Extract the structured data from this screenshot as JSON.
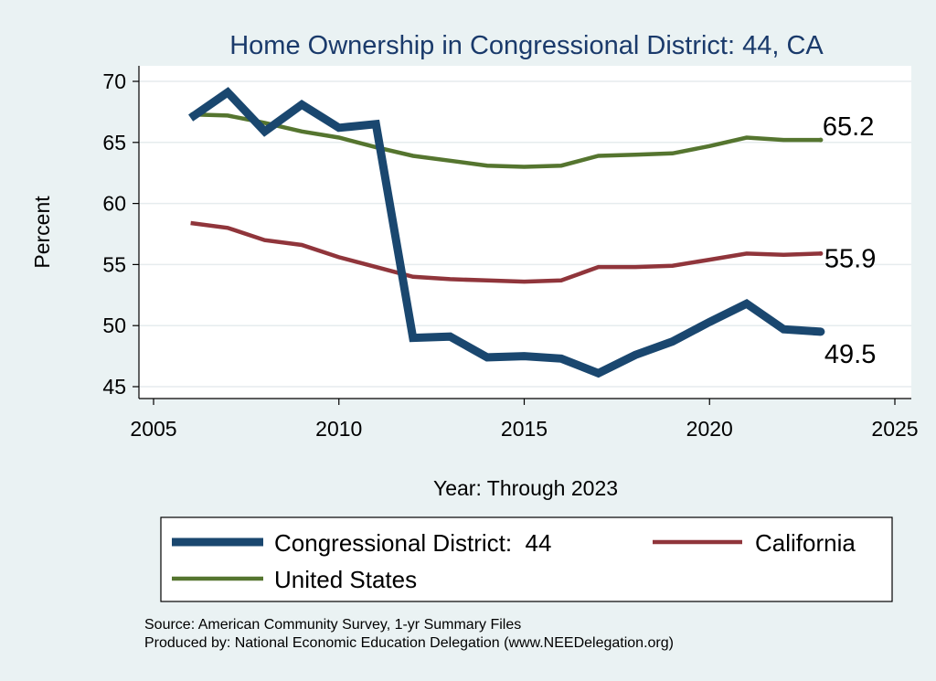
{
  "chart_data": {
    "type": "line",
    "title": "Home Ownership in Congressional District:  44, CA",
    "xlabel": "Year: Through 2023",
    "ylabel": "Percent",
    "xlim": [
      2005,
      2025
    ],
    "ylim": [
      44.5,
      71
    ],
    "x_ticks": [
      2005,
      2010,
      2015,
      2020,
      2025
    ],
    "y_ticks": [
      45,
      50,
      55,
      60,
      65,
      70
    ],
    "grid": true,
    "legend_position": "bottom",
    "x": [
      2006,
      2007,
      2008,
      2009,
      2010,
      2011,
      2012,
      2013,
      2014,
      2015,
      2016,
      2017,
      2018,
      2019,
      2020,
      2021,
      2022,
      2023
    ],
    "series": [
      {
        "name": "Congressional District:  44",
        "color": "#1a476f",
        "values": [
          67.0,
          69.1,
          65.9,
          68.1,
          66.2,
          66.5,
          49.0,
          49.1,
          47.4,
          47.5,
          47.3,
          46.1,
          47.6,
          48.7,
          50.3,
          51.8,
          49.7,
          49.5
        ],
        "end_label": "49.5"
      },
      {
        "name": "California",
        "color": "#90353b",
        "values": [
          58.4,
          58.0,
          57.0,
          56.6,
          55.6,
          54.8,
          54.0,
          53.8,
          53.7,
          53.6,
          53.7,
          54.8,
          54.8,
          54.9,
          55.4,
          55.9,
          55.8,
          55.9
        ],
        "end_label": "55.9"
      },
      {
        "name": "United States",
        "color": "#55752f",
        "values": [
          67.3,
          67.2,
          66.6,
          65.9,
          65.4,
          64.6,
          63.9,
          63.5,
          63.1,
          63.0,
          63.1,
          63.9,
          64.0,
          64.1,
          64.7,
          65.4,
          65.2,
          65.2
        ],
        "end_label": "65.2"
      }
    ]
  },
  "source_lines": [
    "Source: American Community Survey, 1-yr Summary Files",
    "Produced by: National Economic Education Delegation (www.NEEDelegation.org)"
  ]
}
